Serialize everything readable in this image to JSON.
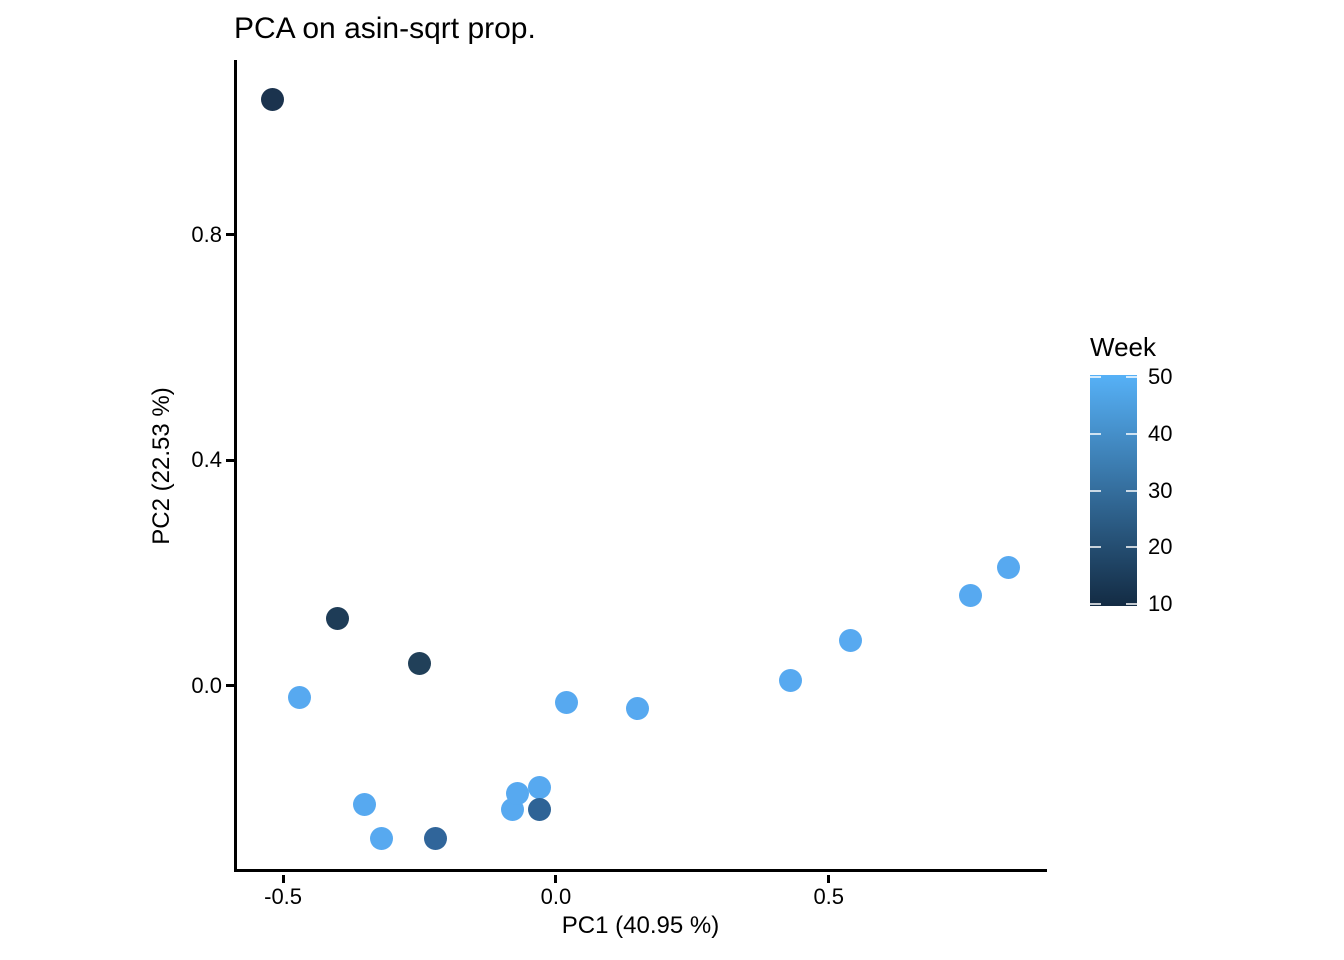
{
  "title": "PCA on asin-sqrt prop.",
  "chart_data": {
    "type": "scatter",
    "title": "PCA on asin-sqrt prop.",
    "xlabel": "PC1 (40.95 %)",
    "ylabel": "PC2 (22.53 %)",
    "xlim": [
      -0.59,
      0.9
    ],
    "ylim": [
      -0.33,
      1.11
    ],
    "grid": false,
    "x_ticks": [
      {
        "value": -0.5,
        "label": "-0.5"
      },
      {
        "value": 0.0,
        "label": "0.0"
      },
      {
        "value": 0.5,
        "label": "0.5"
      }
    ],
    "y_ticks": [
      {
        "value": 0.0,
        "label": "0.0"
      },
      {
        "value": 0.4,
        "label": "0.4"
      },
      {
        "value": 0.8,
        "label": "0.8"
      }
    ],
    "points": [
      {
        "pc1": -0.52,
        "pc2": 1.04,
        "week": 11,
        "color": "#1B334E"
      },
      {
        "pc1": -0.4,
        "pc2": 0.12,
        "week": 14,
        "color": "#1E3C57"
      },
      {
        "pc1": -0.25,
        "pc2": 0.04,
        "week": 15,
        "color": "#214059"
      },
      {
        "pc1": -0.47,
        "pc2": -0.02,
        "week": 47,
        "color": "#57A9F0"
      },
      {
        "pc1": -0.35,
        "pc2": -0.21,
        "week": 47,
        "color": "#57A9F0"
      },
      {
        "pc1": -0.32,
        "pc2": -0.27,
        "week": 47,
        "color": "#57A9F0"
      },
      {
        "pc1": -0.22,
        "pc2": -0.27,
        "week": 26,
        "color": "#30659A"
      },
      {
        "pc1": -0.08,
        "pc2": -0.22,
        "week": 47,
        "color": "#57A9F0"
      },
      {
        "pc1": -0.07,
        "pc2": -0.19,
        "week": 47,
        "color": "#57A9F0"
      },
      {
        "pc1": -0.03,
        "pc2": -0.18,
        "week": 47,
        "color": "#57A9F0"
      },
      {
        "pc1": -0.03,
        "pc2": -0.22,
        "week": 25,
        "color": "#2E6396"
      },
      {
        "pc1": 0.02,
        "pc2": -0.03,
        "week": 47,
        "color": "#57A9F0"
      },
      {
        "pc1": 0.15,
        "pc2": -0.04,
        "week": 47,
        "color": "#57A9F0"
      },
      {
        "pc1": 0.43,
        "pc2": 0.01,
        "week": 47,
        "color": "#57A9F0"
      },
      {
        "pc1": 0.54,
        "pc2": 0.08,
        "week": 47,
        "color": "#57A9F0"
      },
      {
        "pc1": 0.76,
        "pc2": 0.16,
        "week": 47,
        "color": "#57A9F0"
      },
      {
        "pc1": 0.83,
        "pc2": 0.21,
        "week": 47,
        "color": "#57A9F0"
      }
    ],
    "colorbar": {
      "title": "Week",
      "position": "right",
      "min": 10,
      "max": 50,
      "color_low": "#132B43",
      "color_high": "#56B1F7",
      "ticks": [
        {
          "value": 50,
          "label": "50"
        },
        {
          "value": 40,
          "label": "40"
        },
        {
          "value": 30,
          "label": "30"
        },
        {
          "value": 20,
          "label": "20"
        },
        {
          "value": 10,
          "label": "10"
        }
      ]
    }
  }
}
